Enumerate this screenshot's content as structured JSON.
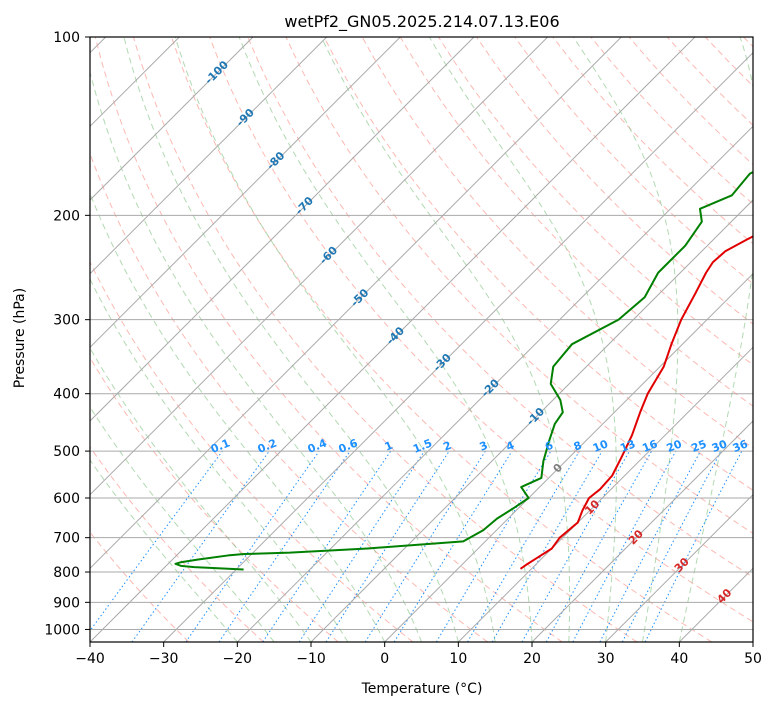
{
  "chart_data": {
    "type": "line",
    "title": "wetPf2_GN05.2025.214.07.13.E06",
    "xlabel": "Temperature (°C)",
    "ylabel": "Pressure (hPa)",
    "xlim": [
      -40,
      50
    ],
    "ylim": [
      1050,
      100
    ],
    "y_scale": "log",
    "grid": true,
    "x_ticks": [
      "−40",
      "−30",
      "−20",
      "−10",
      "0",
      "10",
      "20",
      "30",
      "40",
      "50"
    ],
    "x_tick_values": [
      -40,
      -30,
      -20,
      -10,
      0,
      10,
      20,
      30,
      40,
      50
    ],
    "y_ticks": [
      "100",
      "200",
      "300",
      "400",
      "500",
      "600",
      "700",
      "800",
      "900",
      "1000"
    ],
    "y_tick_values": [
      100,
      200,
      300,
      400,
      500,
      600,
      700,
      800,
      900,
      1000
    ],
    "series": [
      {
        "color": "#e00000",
        "pressure": [
          100,
          105,
          115,
          130,
          150,
          170,
          190,
          200,
          210,
          220,
          230,
          240,
          250,
          270,
          300,
          330,
          360,
          400,
          430,
          470,
          510,
          550,
          580,
          600,
          630,
          660,
          700,
          730,
          760,
          775,
          790
        ],
        "temperature": [
          26.5,
          25.0,
          21.5,
          17.0,
          14.0,
          9.0,
          3.0,
          -1.0,
          -4.0,
          -5.5,
          -6.8,
          -7.0,
          -6.5,
          -5.2,
          -3.5,
          -1.5,
          0.5,
          2.0,
          3.5,
          5.5,
          7.0,
          8.3,
          8.5,
          8.2,
          9.0,
          10.0,
          9.6,
          10.0,
          9.2,
          8.8,
          8.5
        ]
      },
      {
        "color": "#008000",
        "pressure": [
          100,
          110,
          118,
          125,
          140,
          155,
          170,
          185,
          195,
          205,
          225,
          250,
          275,
          300,
          330,
          360,
          385,
          410,
          430,
          450,
          480,
          520,
          555,
          575,
          600,
          625,
          650,
          680,
          710,
          730,
          742,
          746,
          750,
          762,
          770,
          775,
          781,
          785,
          788,
          792
        ],
        "temperature": [
          -1.2,
          -0.8,
          -1.5,
          -4.5,
          -6.0,
          -10.0,
          -14.0,
          -13.5,
          -16.0,
          -14.0,
          -13.0,
          -13.0,
          -11.5,
          -12.0,
          -15.0,
          -14.5,
          -12.5,
          -9.0,
          -7.0,
          -6.5,
          -5.0,
          -3.0,
          -1.0,
          -2.5,
          0.0,
          -0.7,
          -1.5,
          -1.8,
          -3.0,
          -15.0,
          -25.0,
          -31.0,
          -33.0,
          -36.5,
          -38.5,
          -39.0,
          -38.0,
          -36.0,
          -33.0,
          -29.0
        ]
      }
    ],
    "isotherm_labels": [
      "-100",
      "-90",
      "-80",
      "-70",
      "-60",
      "-50",
      "-40",
      "-30",
      "-20",
      "-10",
      "0",
      "10",
      "20",
      "30",
      "40"
    ],
    "isotherm_label_values": [
      -100,
      -90,
      -80,
      -70,
      -60,
      -50,
      -40,
      -30,
      -20,
      -10,
      0,
      10,
      20,
      30,
      40
    ],
    "mixing_ratio_labels": [
      "0.1",
      "0.2",
      "0.4",
      "0.6",
      "1",
      "1.5",
      "2",
      "3",
      "4",
      "6",
      "8",
      "10",
      "13",
      "16",
      "20",
      "25",
      "30",
      "36"
    ],
    "mixing_ratio_values": [
      0.1,
      0.2,
      0.4,
      0.6,
      1,
      1.5,
      2,
      3,
      4,
      6,
      8,
      10,
      13,
      16,
      20,
      25,
      30,
      36
    ],
    "colors": {
      "isotherm": "#aaaaaa",
      "isotherm_label_cold": "#1f77b4",
      "isotherm_label_zero": "#808080",
      "isotherm_label_warm": "#d62728",
      "mixing_ratio": "#1e90ff",
      "dry_adiabat": "#fa8072",
      "moist_adiabat": "#7fbf7f",
      "mixing_ratio_label": "#1e90ff"
    }
  }
}
